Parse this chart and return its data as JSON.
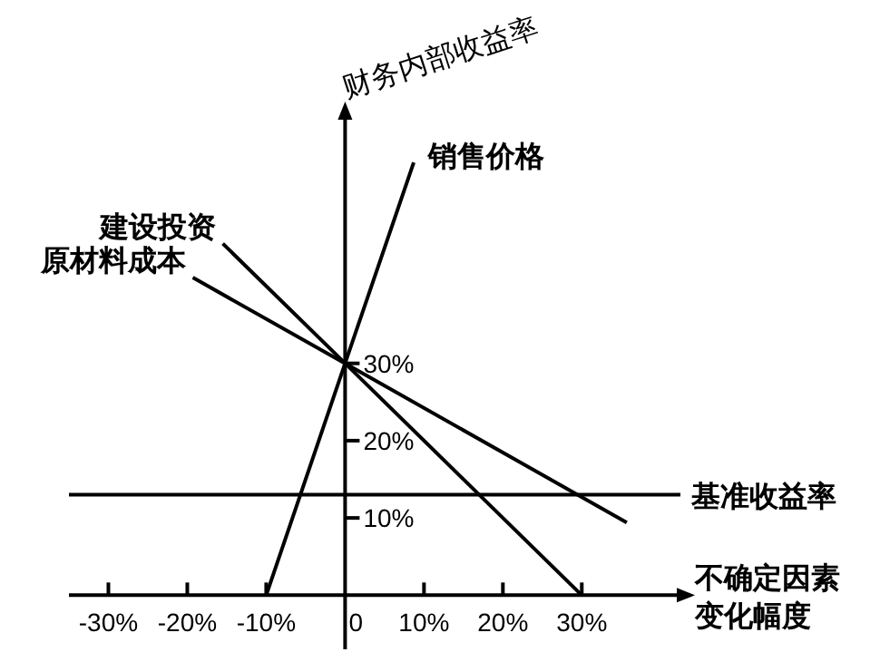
{
  "chart_data": {
    "type": "line",
    "ylabel": "财务内部收益率",
    "xlabel": "不确定因素变化幅度",
    "xlim": [
      -35,
      42.5
    ],
    "ylim": [
      -7,
      62
    ],
    "xticks": [
      {
        "value": -30,
        "label": "-30%"
      },
      {
        "value": -20,
        "label": "-20%"
      },
      {
        "value": -10,
        "label": "-10%"
      },
      {
        "value": 0,
        "label": "0"
      },
      {
        "value": 10,
        "label": "10%"
      },
      {
        "value": 20,
        "label": "20%"
      },
      {
        "value": 30,
        "label": "30%"
      }
    ],
    "yticks": [
      {
        "value": 10,
        "label": "10%"
      },
      {
        "value": 20,
        "label": "20%"
      },
      {
        "value": 30,
        "label": "30%"
      }
    ],
    "series": [
      {
        "name": "销售价格",
        "color": "#000000",
        "x": [
          -10,
          0,
          8.7
        ],
        "values": [
          0,
          30,
          56
        ]
      },
      {
        "name": "建设投资",
        "color": "#000000",
        "x": [
          -15.5,
          0,
          30
        ],
        "values": [
          45.5,
          30,
          0
        ]
      },
      {
        "name": "原材料成本",
        "color": "#000000",
        "x": [
          -19.3,
          0,
          35.7
        ],
        "values": [
          41.1,
          30,
          9.4
        ]
      }
    ],
    "ref_lines": [
      {
        "axis": "y",
        "value": 13,
        "label": "基准收益率",
        "color": "#000000"
      }
    ],
    "grid": false,
    "marker": "none",
    "line_style": "solid"
  }
}
